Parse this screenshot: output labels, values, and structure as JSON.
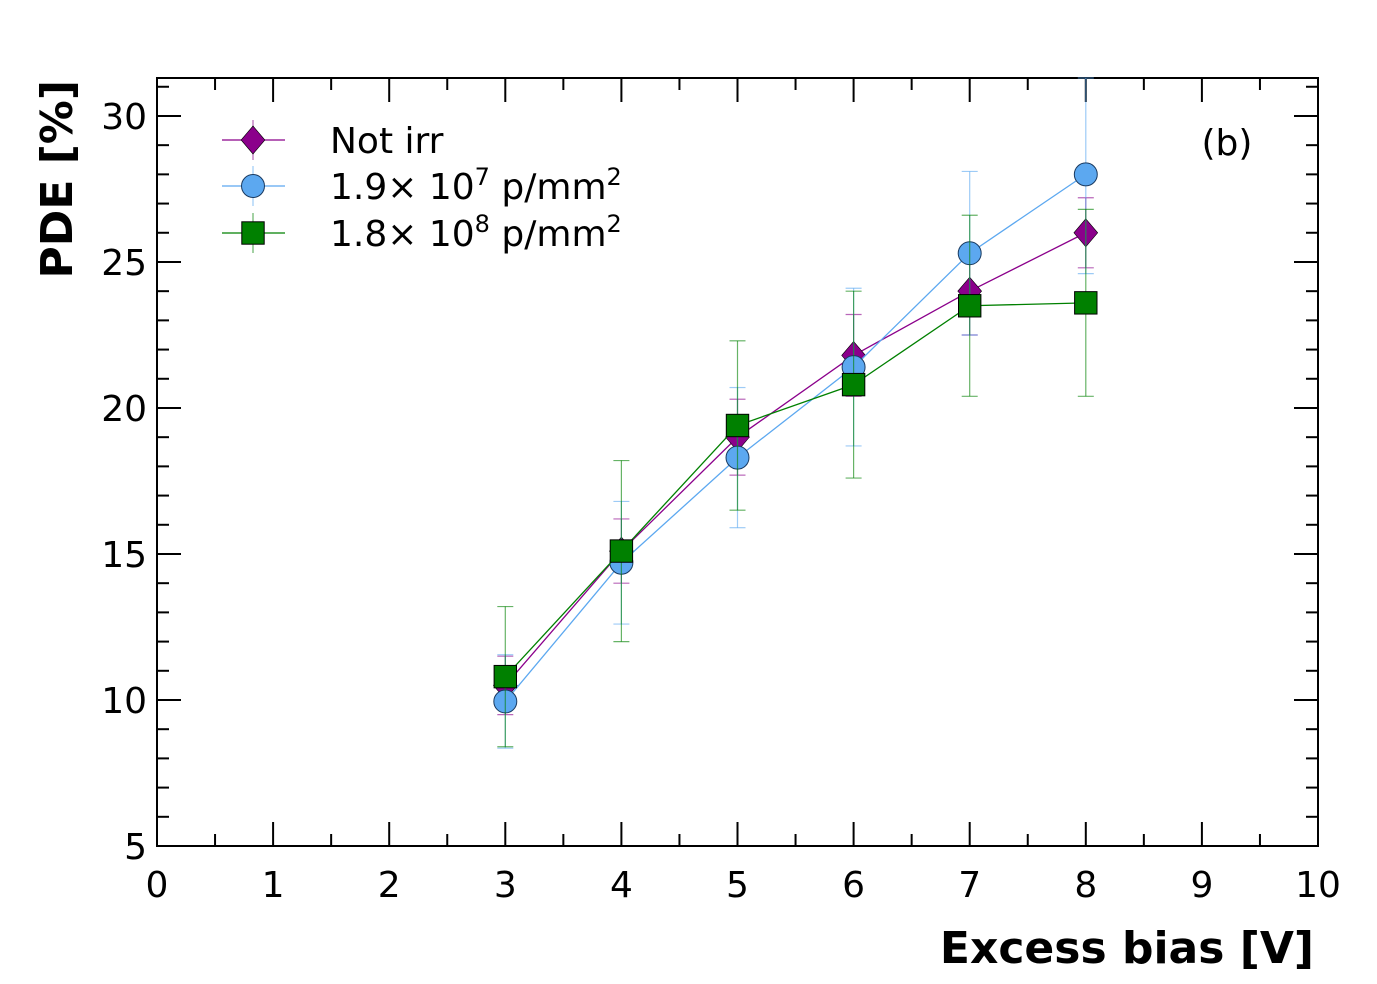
{
  "chart_data": {
    "type": "scatter",
    "title": "",
    "panel_label": "(b)",
    "xlabel": "Excess bias [V]",
    "ylabel": "PDE [%]",
    "xlim": [
      0,
      10
    ],
    "ylim": [
      5,
      31.3
    ],
    "xticks": [
      0,
      1,
      2,
      3,
      4,
      5,
      6,
      7,
      8,
      9,
      10
    ],
    "yticks": [
      5,
      10,
      15,
      20,
      25,
      30
    ],
    "grid": false,
    "legend_position": "top-left",
    "series": [
      {
        "name": "Not irr",
        "marker": "diamond",
        "color": "#8B008B",
        "x": [
          3,
          4,
          5,
          6,
          7,
          8
        ],
        "y": [
          10.5,
          15.1,
          19.0,
          21.8,
          24.0,
          26.0
        ],
        "err": [
          1.0,
          1.1,
          1.3,
          1.4,
          1.5,
          1.2
        ]
      },
      {
        "name_parts": {
          "base": "1.9× 10",
          "exp": "7",
          "unit": " p/mm",
          "unit_exp": "2"
        },
        "marker": "circle",
        "color": "#5CA8F0",
        "x": [
          3,
          4,
          5,
          6,
          7,
          8
        ],
        "y": [
          9.95,
          14.7,
          18.3,
          21.4,
          25.3,
          28.0
        ],
        "err": [
          1.6,
          2.1,
          2.4,
          2.7,
          2.8,
          3.4
        ]
      },
      {
        "name_parts": {
          "base": "1.8× 10",
          "exp": "8",
          "unit": " p/mm",
          "unit_exp": "2"
        },
        "marker": "square",
        "color": "#008000",
        "x": [
          3,
          4,
          5,
          6,
          7,
          8
        ],
        "y": [
          10.8,
          15.1,
          19.4,
          20.8,
          23.5,
          23.6
        ],
        "err": [
          2.4,
          3.1,
          2.9,
          3.2,
          3.1,
          3.2
        ]
      }
    ]
  }
}
